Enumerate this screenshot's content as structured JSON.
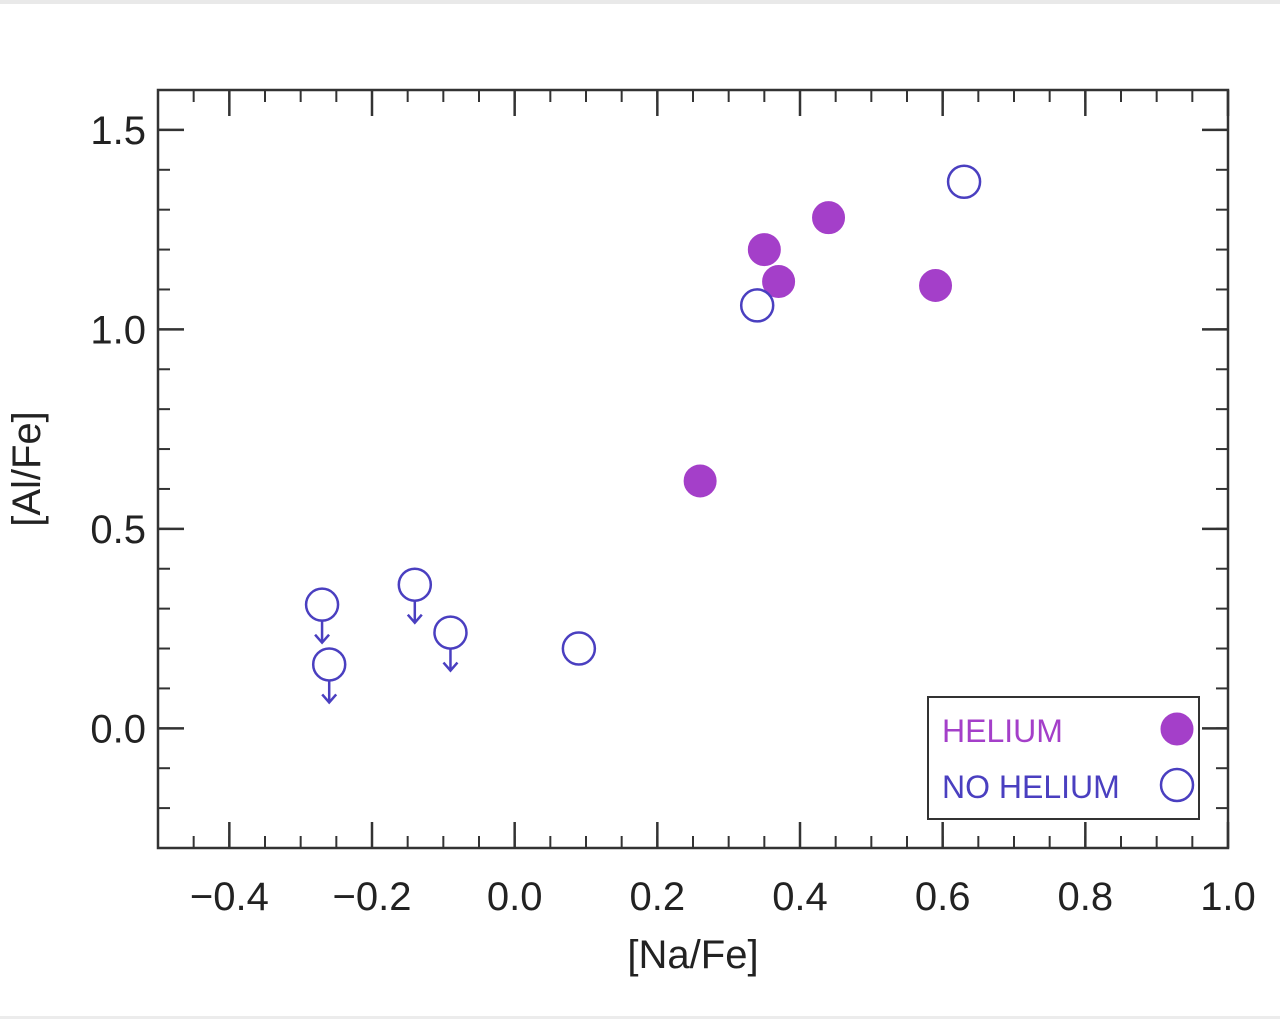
{
  "chart_data": {
    "type": "scatter",
    "xlabel": "[Na/Fe]",
    "ylabel": "[Al/Fe]",
    "xlim": [
      -0.5,
      1.0
    ],
    "ylim": [
      -0.3,
      1.6
    ],
    "x_ticks": [
      -0.4,
      -0.2,
      0.0,
      0.2,
      0.4,
      0.6,
      0.8,
      1.0
    ],
    "x_tick_labels": [
      "−0.4",
      "−0.2",
      "0.0",
      "0.2",
      "0.4",
      "0.6",
      "0.8",
      "1.0"
    ],
    "y_ticks": [
      0.0,
      0.5,
      1.0,
      1.5
    ],
    "y_tick_labels": [
      "0.0",
      "0.5",
      "1.0",
      "1.5"
    ],
    "grid": false,
    "legend_position": "bottom-right",
    "series": [
      {
        "name": "HELIUM",
        "marker": "filled-circle",
        "color": "#a43fc9",
        "points": [
          {
            "x": 0.26,
            "y": 0.62
          },
          {
            "x": 0.35,
            "y": 1.2
          },
          {
            "x": 0.37,
            "y": 1.12
          },
          {
            "x": 0.44,
            "y": 1.28
          },
          {
            "x": 0.59,
            "y": 1.11
          }
        ]
      },
      {
        "name": "NO HELIUM",
        "marker": "open-circle",
        "color": "#4a3fc0",
        "points": [
          {
            "x": -0.27,
            "y": 0.31,
            "upper_limit": true
          },
          {
            "x": -0.26,
            "y": 0.16,
            "upper_limit": true
          },
          {
            "x": -0.14,
            "y": 0.36,
            "upper_limit": true
          },
          {
            "x": -0.09,
            "y": 0.24,
            "upper_limit": true
          },
          {
            "x": 0.09,
            "y": 0.2,
            "upper_limit": false
          },
          {
            "x": 0.34,
            "y": 1.06,
            "upper_limit": false
          },
          {
            "x": 0.63,
            "y": 1.37,
            "upper_limit": false
          }
        ]
      }
    ]
  }
}
